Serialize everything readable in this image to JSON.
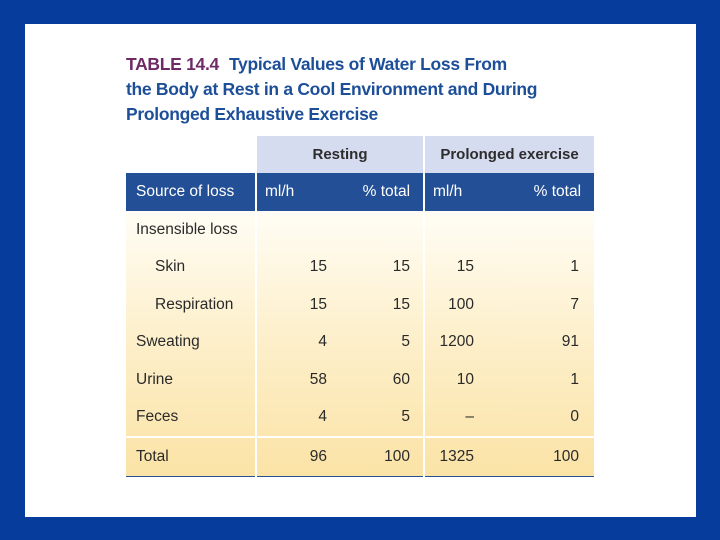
{
  "table": {
    "number": "TABLE 14.4",
    "title_lines": [
      "Typical Values of Water Loss From",
      "the Body at Rest in a Cool Environment and During",
      "Prolonged Exhaustive Exercise"
    ],
    "group_headers": {
      "resting": "Resting",
      "exercise": "Prolonged exercise"
    },
    "columns": {
      "source": "Source of loss",
      "rest_ml": "ml/h",
      "rest_pct": "% total",
      "ex_ml": "ml/h",
      "ex_pct": "% total"
    },
    "rows": [
      {
        "source": "Insensible loss",
        "rest_ml": "",
        "rest_pct": "",
        "ex_ml": "",
        "ex_pct": ""
      },
      {
        "source": "Skin",
        "rest_ml": "15",
        "rest_pct": "15",
        "ex_ml": "15",
        "ex_pct": "1"
      },
      {
        "source": "Respiration",
        "rest_ml": "15",
        "rest_pct": "15",
        "ex_ml": "100",
        "ex_pct": "7"
      },
      {
        "source": "Sweating",
        "rest_ml": "4",
        "rest_pct": "5",
        "ex_ml": "1200",
        "ex_pct": "91"
      },
      {
        "source": "Urine",
        "rest_ml": "58",
        "rest_pct": "60",
        "ex_ml": "10",
        "ex_pct": "1"
      },
      {
        "source": "Feces",
        "rest_ml": "4",
        "rest_pct": "5",
        "ex_ml": "–",
        "ex_pct": "0"
      },
      {
        "source": "Total",
        "rest_ml": "96",
        "rest_pct": "100",
        "ex_ml": "1325",
        "ex_pct": "100"
      }
    ]
  }
}
